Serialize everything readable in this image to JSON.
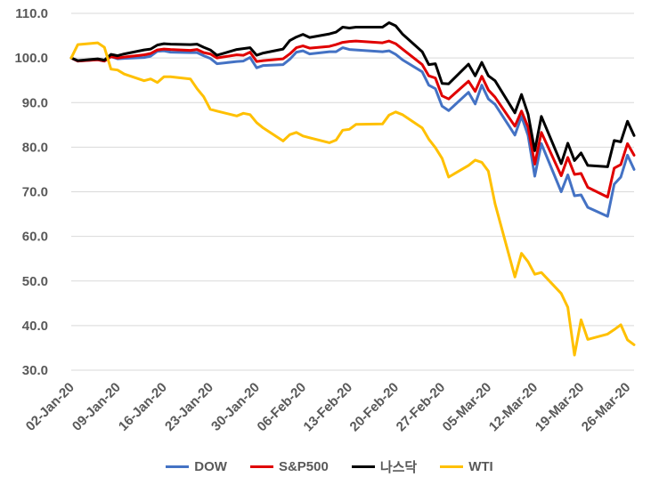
{
  "chart_data": {
    "type": "line",
    "title": "",
    "xlabel": "",
    "ylabel": "",
    "ylim": [
      30,
      110
    ],
    "y_ticks": [
      "110.0",
      "100.0",
      "90.0",
      "80.0",
      "70.0",
      "60.0",
      "50.0",
      "40.0",
      "30.0"
    ],
    "x_ticks": [
      "02-Jan-20",
      "09-Jan-20",
      "16-Jan-20",
      "23-Jan-20",
      "30-Jan-20",
      "06-Feb-20",
      "13-Feb-20",
      "20-Feb-20",
      "27-Feb-20",
      "05-Mar-20",
      "12-Mar-20",
      "19-Mar-20",
      "26-Mar-20"
    ],
    "grid": true,
    "legend_position": "bottom",
    "series": [
      {
        "name": "DOW",
        "color": "#4472C4",
        "values": [
          [
            0,
            100
          ],
          [
            1,
            99.3
          ],
          [
            4,
            99.6
          ],
          [
            5,
            99.3
          ],
          [
            6,
            100.3
          ],
          [
            7,
            99.8
          ],
          [
            8,
            99.9
          ],
          [
            11,
            100.1
          ],
          [
            12,
            100.4
          ],
          [
            13,
            101.5
          ],
          [
            14,
            101.6
          ],
          [
            15,
            101.3
          ],
          [
            18,
            101.2
          ],
          [
            19,
            101.2
          ],
          [
            20,
            100.5
          ],
          [
            21,
            99.9
          ],
          [
            22,
            98.7
          ],
          [
            25,
            99.2
          ],
          [
            26,
            99.3
          ],
          [
            27,
            100.1
          ],
          [
            28,
            97.8
          ],
          [
            29,
            98.3
          ],
          [
            32,
            98.5
          ],
          [
            33,
            99.7
          ],
          [
            34,
            101.3
          ],
          [
            35,
            101.6
          ],
          [
            36,
            100.9
          ],
          [
            39,
            101.4
          ],
          [
            40,
            101.4
          ],
          [
            41,
            102.3
          ],
          [
            42,
            101.9
          ],
          [
            43,
            101.8
          ],
          [
            47,
            101.4
          ],
          [
            48,
            101.6
          ],
          [
            49,
            100.8
          ],
          [
            50,
            99.6
          ],
          [
            53,
            96.9
          ],
          [
            54,
            93.9
          ],
          [
            55,
            93.1
          ],
          [
            56,
            89.2
          ],
          [
            57,
            88.2
          ],
          [
            60,
            92.3
          ],
          [
            61,
            89.7
          ],
          [
            62,
            93.9
          ],
          [
            63,
            90.8
          ],
          [
            64,
            89.6
          ],
          [
            67,
            82.7
          ],
          [
            68,
            86.9
          ],
          [
            69,
            82.6
          ],
          [
            70,
            73.5
          ],
          [
            71,
            80.8
          ],
          [
            74,
            70
          ],
          [
            75,
            73.8
          ],
          [
            76,
            69.1
          ],
          [
            77,
            69.3
          ],
          [
            78,
            66.5
          ],
          [
            81,
            64.5
          ],
          [
            82,
            71.7
          ],
          [
            83,
            73.3
          ],
          [
            84,
            78.2
          ],
          [
            85,
            75
          ]
        ]
      },
      {
        "name": "S&P500",
        "color": "#E00000",
        "values": [
          [
            0,
            100
          ],
          [
            1,
            99.3
          ],
          [
            4,
            99.6
          ],
          [
            5,
            99.3
          ],
          [
            6,
            100.3
          ],
          [
            7,
            100
          ],
          [
            8,
            100.2
          ],
          [
            11,
            100.7
          ],
          [
            12,
            101
          ],
          [
            13,
            101.8
          ],
          [
            14,
            102
          ],
          [
            15,
            101.9
          ],
          [
            18,
            101.7
          ],
          [
            19,
            101.9
          ],
          [
            20,
            101.2
          ],
          [
            21,
            100.9
          ],
          [
            22,
            100
          ],
          [
            25,
            100.7
          ],
          [
            26,
            100.6
          ],
          [
            27,
            101.3
          ],
          [
            28,
            99.2
          ],
          [
            29,
            99.4
          ],
          [
            32,
            99.8
          ],
          [
            33,
            100.9
          ],
          [
            34,
            102.3
          ],
          [
            35,
            102.7
          ],
          [
            36,
            102.2
          ],
          [
            39,
            102.6
          ],
          [
            40,
            103
          ],
          [
            41,
            103.5
          ],
          [
            42,
            103.7
          ],
          [
            43,
            103.8
          ],
          [
            47,
            103.4
          ],
          [
            48,
            103.8
          ],
          [
            49,
            103.2
          ],
          [
            50,
            102
          ],
          [
            53,
            98.5
          ],
          [
            54,
            96
          ],
          [
            55,
            95.5
          ],
          [
            56,
            91.5
          ],
          [
            57,
            90.8
          ],
          [
            60,
            94.8
          ],
          [
            61,
            92.5
          ],
          [
            62,
            95.9
          ],
          [
            63,
            92.8
          ],
          [
            64,
            91.2
          ],
          [
            67,
            84.7
          ],
          [
            68,
            88.1
          ],
          [
            69,
            84.5
          ],
          [
            70,
            76.2
          ],
          [
            71,
            83.3
          ],
          [
            74,
            73.6
          ],
          [
            75,
            77.7
          ],
          [
            76,
            73.9
          ],
          [
            77,
            74.1
          ],
          [
            78,
            71
          ],
          [
            81,
            68.8
          ],
          [
            82,
            75.3
          ],
          [
            83,
            76.1
          ],
          [
            84,
            80.8
          ],
          [
            85,
            78.2
          ]
        ]
      },
      {
        "name": "나스닥",
        "color": "#000000",
        "values": [
          [
            0,
            100
          ],
          [
            1,
            99.4
          ],
          [
            4,
            99.8
          ],
          [
            5,
            99.5
          ],
          [
            6,
            100.8
          ],
          [
            7,
            100.5
          ],
          [
            8,
            100.9
          ],
          [
            11,
            101.8
          ],
          [
            12,
            102
          ],
          [
            13,
            102.9
          ],
          [
            14,
            103.2
          ],
          [
            15,
            103.1
          ],
          [
            18,
            103
          ],
          [
            19,
            103.1
          ],
          [
            20,
            102.4
          ],
          [
            21,
            101.8
          ],
          [
            22,
            100.6
          ],
          [
            25,
            101.9
          ],
          [
            26,
            102.1
          ],
          [
            27,
            102.3
          ],
          [
            28,
            100.6
          ],
          [
            29,
            101.1
          ],
          [
            32,
            102
          ],
          [
            33,
            103.9
          ],
          [
            34,
            104.7
          ],
          [
            35,
            105.3
          ],
          [
            36,
            104.6
          ],
          [
            39,
            105.4
          ],
          [
            40,
            105.8
          ],
          [
            41,
            106.9
          ],
          [
            42,
            106.7
          ],
          [
            43,
            106.9
          ],
          [
            47,
            106.9
          ],
          [
            48,
            107.9
          ],
          [
            49,
            107.2
          ],
          [
            50,
            105.4
          ],
          [
            53,
            101.4
          ],
          [
            54,
            98.5
          ],
          [
            55,
            98.7
          ],
          [
            56,
            94.3
          ],
          [
            57,
            94.2
          ],
          [
            60,
            98.6
          ],
          [
            61,
            96
          ],
          [
            62,
            99
          ],
          [
            63,
            96
          ],
          [
            64,
            94.9
          ],
          [
            67,
            87.7
          ],
          [
            68,
            91.8
          ],
          [
            69,
            87.4
          ],
          [
            70,
            79.2
          ],
          [
            71,
            86.9
          ],
          [
            74,
            76.3
          ],
          [
            75,
            80.9
          ],
          [
            76,
            77
          ],
          [
            77,
            78.7
          ],
          [
            78,
            75.9
          ],
          [
            81,
            75.6
          ],
          [
            82,
            81.5
          ],
          [
            83,
            81.2
          ],
          [
            84,
            85.8
          ],
          [
            85,
            82.6
          ]
        ]
      },
      {
        "name": "WTI",
        "color": "#FFC000",
        "values": [
          [
            0,
            100
          ],
          [
            1,
            103
          ],
          [
            4,
            103.4
          ],
          [
            5,
            102.4
          ],
          [
            6,
            97.5
          ],
          [
            7,
            97.3
          ],
          [
            8,
            96.4
          ],
          [
            11,
            94.9
          ],
          [
            12,
            95.3
          ],
          [
            13,
            94.5
          ],
          [
            14,
            95.8
          ],
          [
            15,
            95.8
          ],
          [
            18,
            95.3
          ],
          [
            19,
            93.1
          ],
          [
            20,
            91.3
          ],
          [
            21,
            88.5
          ],
          [
            22,
            88.1
          ],
          [
            25,
            87
          ],
          [
            26,
            87.6
          ],
          [
            27,
            87.3
          ],
          [
            28,
            85.5
          ],
          [
            29,
            84.3
          ],
          [
            32,
            81.4
          ],
          [
            33,
            82.8
          ],
          [
            34,
            83.3
          ],
          [
            35,
            82.5
          ],
          [
            36,
            82.1
          ],
          [
            39,
            81
          ],
          [
            40,
            81.6
          ],
          [
            41,
            83.8
          ],
          [
            42,
            84
          ],
          [
            43,
            85.1
          ],
          [
            47,
            85.2
          ],
          [
            48,
            87.2
          ],
          [
            49,
            87.9
          ],
          [
            50,
            87.3
          ],
          [
            53,
            84.3
          ],
          [
            54,
            81.8
          ],
          [
            55,
            79.9
          ],
          [
            56,
            77.5
          ],
          [
            57,
            73.3
          ],
          [
            60,
            75.9
          ],
          [
            61,
            77.1
          ],
          [
            62,
            76.6
          ],
          [
            63,
            74.6
          ],
          [
            64,
            67.3
          ],
          [
            67,
            50.9
          ],
          [
            68,
            56.2
          ],
          [
            69,
            54.3
          ],
          [
            70,
            51.5
          ],
          [
            71,
            51.9
          ],
          [
            74,
            47.2
          ],
          [
            75,
            44.1
          ],
          [
            76,
            33.4
          ],
          [
            77,
            41.3
          ],
          [
            78,
            36.9
          ],
          [
            81,
            38.1
          ],
          [
            82,
            39.1
          ],
          [
            83,
            40.2
          ],
          [
            84,
            36.8
          ],
          [
            85,
            35.7
          ]
        ]
      }
    ]
  }
}
